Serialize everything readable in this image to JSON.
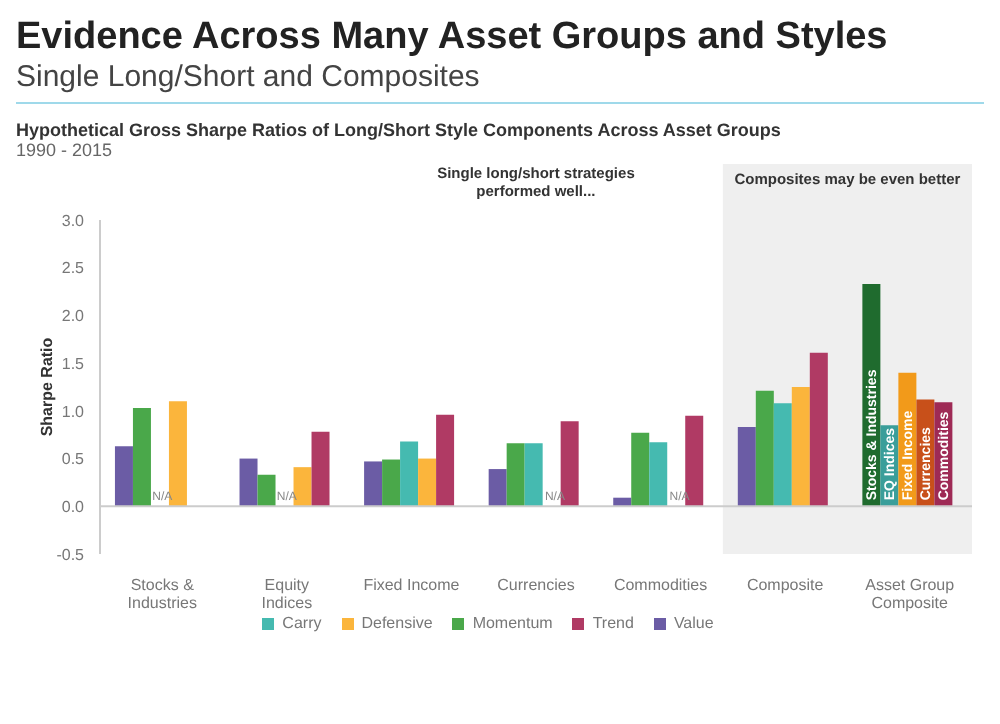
{
  "chart_data": {
    "type": "bar",
    "title": "Evidence Across Many Asset Groups and Styles",
    "subtitle": "Single Long/Short and Composites",
    "annotations": [
      "Hypothetical Gross Sharpe Ratios of Long/Short Style Components Across Asset Groups",
      "1990 - 2015",
      "Single long/short strategies performed well..."
    ],
    "ylabel": "Sharpe Ratio",
    "categories": [
      "Stocks & Industries",
      "Equity Indices",
      "Fixed Income",
      "Currencies",
      "Commodities",
      "Composite",
      "Asset Group Composite"
    ],
    "series": [
      {
        "name": "Value",
        "color": "#6b5ca5",
        "values": [
          0.63,
          0.5,
          0.47,
          0.39,
          0.09,
          0.83,
          null
        ]
      },
      {
        "name": "Momentum",
        "color": "#4aa84a",
        "values": [
          1.03,
          0.33,
          0.49,
          0.66,
          0.77,
          1.21,
          null
        ]
      },
      {
        "name": "Carry",
        "color": "#45bab0",
        "values": [
          null,
          null,
          0.68,
          0.66,
          0.67,
          1.08,
          null
        ],
        "value_labels": [
          "N/A",
          "N/A",
          null,
          null,
          null,
          null,
          null
        ]
      },
      {
        "name": "Defensive",
        "color": "#fbb53c",
        "values": [
          1.1,
          0.41,
          0.5,
          null,
          null,
          1.25,
          null
        ],
        "value_labels": [
          null,
          null,
          null,
          "N/A",
          "N/A",
          null,
          null
        ]
      },
      {
        "name": "Trend",
        "color": "#b03a64",
        "values": [
          null,
          0.78,
          0.96,
          0.89,
          0.95,
          1.61,
          null
        ]
      },
      {
        "name": "Stocks & Industries",
        "color": "#1f6b2e",
        "values": [
          null,
          null,
          null,
          null,
          null,
          null,
          2.33
        ]
      },
      {
        "name": "EQ Indices",
        "color": "#3a9e9a",
        "values": [
          null,
          null,
          null,
          null,
          null,
          null,
          0.85
        ]
      },
      {
        "name": "Fixed Income",
        "color": "#f29a1a",
        "values": [
          null,
          null,
          null,
          null,
          null,
          null,
          1.4
        ]
      },
      {
        "name": "Currencies",
        "color": "#c8501a",
        "values": [
          null,
          null,
          null,
          null,
          null,
          null,
          1.12
        ]
      },
      {
        "name": "Commodities",
        "color": "#9e2a55",
        "values": [
          null,
          null,
          null,
          null,
          null,
          null,
          1.09
        ]
      }
    ],
    "ylim": [
      -0.5,
      3.0
    ],
    "yticks": [
      {
        "value": -0.5,
        "label": "-0.5"
      },
      {
        "value": 0,
        "label": "0.0"
      },
      {
        "value": 0.5,
        "label": "0.5"
      },
      {
        "value": 1,
        "label": "1.0"
      },
      {
        "value": 1.5,
        "label": "1.5"
      },
      {
        "value": 2,
        "label": "2.0"
      },
      {
        "value": 2.5,
        "label": "2.5"
      },
      {
        "value": 3,
        "label": "3.0"
      }
    ],
    "bands": [
      {
        "axis": "x",
        "from": "Composite",
        "to": "Asset Group Composite",
        "label": "Composites may be even better",
        "color": "#efefef"
      }
    ],
    "ref_lines": [
      {
        "axis": "y",
        "value": 0,
        "color": "#cccccc"
      }
    ],
    "legend": "bottom",
    "grid": false
  }
}
